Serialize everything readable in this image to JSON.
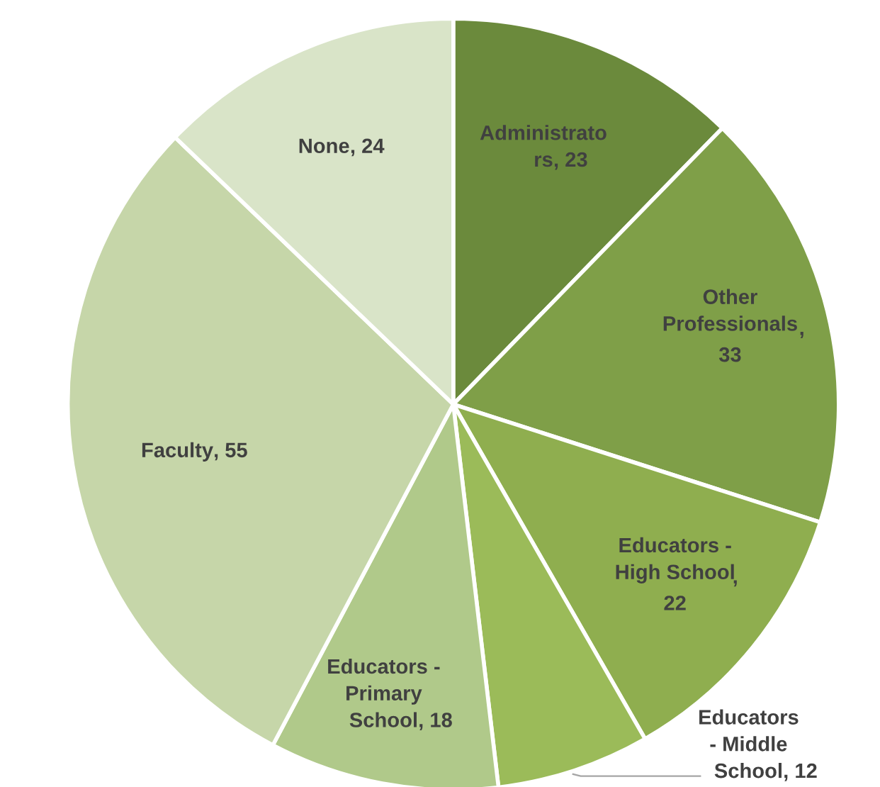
{
  "chart_data": {
    "type": "pie",
    "categories": [
      "Administrato\nrs",
      "Other\nProfessionals",
      "Educators -\nHigh School",
      "Educators\n- Middle\nSchool",
      "Educators -\nPrimary\nSchool",
      "Faculty",
      "None"
    ],
    "values": [
      23,
      33,
      22,
      12,
      18,
      55,
      24
    ],
    "colors": [
      "#6b8a3c",
      "#7f9f48",
      "#8fae4f",
      "#9bbb59",
      "#b0c98a",
      "#c6d6a9",
      "#d9e4c8"
    ],
    "value_labels": [
      ", 23",
      ",\n33",
      ",\n22",
      ", 12",
      ", 18",
      ", 55",
      ", 24"
    ]
  }
}
